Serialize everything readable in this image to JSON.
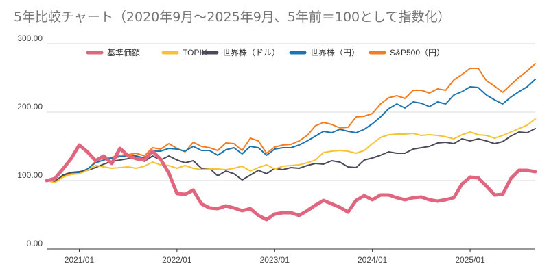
{
  "chart_data": {
    "type": "line",
    "title": "5年比較チャート（2020年9月〜2025年9月、5年前＝100として指数化）",
    "xlabel": "",
    "ylabel": "",
    "ylim": [
      0,
      300
    ],
    "y_ticks": [
      0,
      100,
      200,
      300
    ],
    "y_tick_labels": [
      "0.00",
      "100.00",
      "200.00",
      "300.00"
    ],
    "x_ticks": [
      "2021/01",
      "2022/01",
      "2023/01",
      "2024/01",
      "2025/01"
    ],
    "x_tick_index": [
      4,
      16,
      28,
      40,
      52
    ],
    "x_points": 61,
    "grid": "horizontal",
    "legend_position": "top",
    "series": [
      {
        "name": "基準価額",
        "color": "#e06680",
        "values": [
          100,
          103,
          117,
          132,
          152,
          142,
          129,
          136,
          125,
          147,
          136,
          132,
          130,
          143,
          131,
          111,
          81,
          80,
          86,
          66,
          60,
          59,
          63,
          60,
          56,
          59,
          49,
          43,
          51,
          53,
          53,
          49,
          56,
          64,
          71,
          66,
          61,
          54,
          71,
          78,
          72,
          79,
          79,
          75,
          72,
          75,
          76,
          72,
          70,
          72,
          75,
          95,
          105,
          104,
          92,
          79,
          80,
          103,
          115,
          115,
          113
        ]
      },
      {
        "name": "TOPIX",
        "color": "#f7c234",
        "values": [
          100,
          97,
          105,
          109,
          110,
          115,
          122,
          120,
          118,
          119,
          120,
          118,
          121,
          127,
          123,
          122,
          118,
          122,
          118,
          116,
          117,
          117,
          116,
          118,
          121,
          114,
          119,
          123,
          117,
          121,
          122,
          123,
          126,
          130,
          141,
          143,
          144,
          143,
          140,
          144,
          154,
          163,
          167,
          168,
          168,
          169,
          166,
          167,
          166,
          164,
          161,
          167,
          171,
          167,
          166,
          162,
          166,
          171,
          176,
          181,
          190
        ]
      },
      {
        "name": "世界株（ドル）",
        "color": "#4a4a5a",
        "values": [
          100,
          98,
          108,
          112,
          113,
          115,
          119,
          124,
          128,
          130,
          132,
          135,
          128,
          136,
          130,
          136,
          130,
          126,
          129,
          118,
          118,
          107,
          114,
          110,
          101,
          108,
          115,
          110,
          118,
          116,
          119,
          118,
          122,
          125,
          124,
          129,
          127,
          120,
          119,
          130,
          133,
          137,
          142,
          140,
          140,
          146,
          148,
          150,
          155,
          156,
          154,
          161,
          158,
          161,
          158,
          154,
          157,
          165,
          171,
          170,
          176
        ]
      },
      {
        "name": "世界株（円）",
        "color": "#1b75b3",
        "values": [
          100,
          99,
          108,
          112,
          112,
          117,
          126,
          130,
          133,
          135,
          136,
          136,
          133,
          143,
          143,
          147,
          146,
          143,
          150,
          144,
          144,
          137,
          145,
          148,
          139,
          150,
          148,
          137,
          146,
          148,
          148,
          152,
          158,
          165,
          172,
          170,
          175,
          172,
          170,
          175,
          183,
          193,
          205,
          212,
          206,
          215,
          213,
          208,
          215,
          212,
          225,
          230,
          237,
          236,
          225,
          218,
          212,
          222,
          230,
          237,
          248
        ]
      },
      {
        "name": "S&P500（円）",
        "color": "#f47b20",
        "values": [
          100,
          99,
          107,
          110,
          110,
          116,
          128,
          133,
          134,
          137,
          138,
          140,
          136,
          148,
          146,
          154,
          147,
          142,
          156,
          150,
          148,
          144,
          155,
          154,
          144,
          162,
          158,
          140,
          149,
          152,
          153,
          158,
          166,
          180,
          185,
          182,
          177,
          178,
          193,
          194,
          198,
          212,
          221,
          224,
          220,
          232,
          232,
          228,
          234,
          232,
          247,
          255,
          264,
          264,
          246,
          238,
          229,
          240,
          251,
          260,
          271
        ]
      }
    ]
  }
}
